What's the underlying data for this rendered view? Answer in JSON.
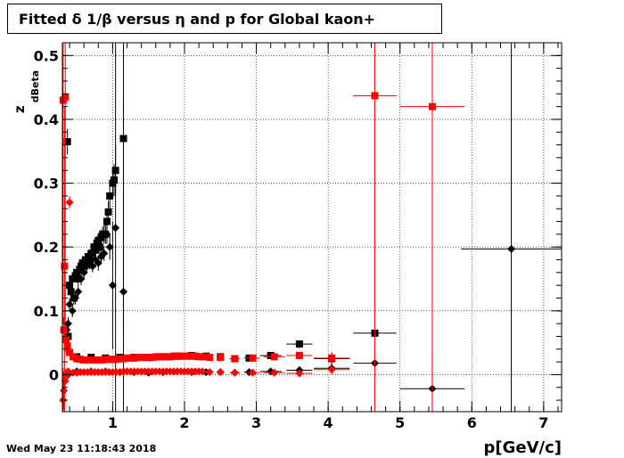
{
  "title": "Fitted δ 1/β versus η and p for Global kaon+",
  "timestamp": "Wed May 23 11:18:43 2018",
  "chart_data": {
    "type": "scatter",
    "xlabel": "p[GeV/c]",
    "ylabel": "z_dBeta",
    "ylabel_main": "z",
    "ylabel_sub": "dBeta",
    "xlim": [
      0.3,
      7.25
    ],
    "ylim": [
      -0.058,
      0.52
    ],
    "xticks": [
      1,
      2,
      3,
      4,
      5,
      6,
      7
    ],
    "yticks": [
      0,
      0.1,
      0.2,
      0.3,
      0.4,
      0.5
    ],
    "ytick_labels": [
      "0",
      "0.1",
      "0.2",
      "0.3",
      "0.4",
      "0.5"
    ],
    "grid": true,
    "series": [
      {
        "color": "#000000",
        "marker": "square",
        "points": [
          [
            0.37,
            0.365,
            0.01,
            0.02
          ],
          [
            0.4,
            0.14,
            0.01,
            0.012
          ],
          [
            0.42,
            0.13,
            0.01,
            0.01
          ],
          [
            0.44,
            0.15,
            0.01,
            0.01
          ],
          [
            0.46,
            0.12,
            0.01,
            0.01
          ],
          [
            0.48,
            0.155,
            0.01,
            0.01
          ],
          [
            0.5,
            0.16,
            0.01,
            0.01
          ],
          [
            0.52,
            0.15,
            0.01,
            0.01
          ],
          [
            0.54,
            0.165,
            0.01,
            0.01
          ],
          [
            0.56,
            0.17,
            0.01,
            0.01
          ],
          [
            0.58,
            0.175,
            0.01,
            0.01
          ],
          [
            0.6,
            0.17,
            0.01,
            0.01
          ],
          [
            0.62,
            0.18,
            0.01,
            0.01
          ],
          [
            0.64,
            0.175,
            0.01,
            0.01
          ],
          [
            0.66,
            0.185,
            0.01,
            0.01
          ],
          [
            0.68,
            0.18,
            0.01,
            0.01
          ],
          [
            0.7,
            0.19,
            0.01,
            0.01
          ],
          [
            0.72,
            0.19,
            0.01,
            0.01
          ],
          [
            0.74,
            0.2,
            0.01,
            0.012
          ],
          [
            0.76,
            0.195,
            0.01,
            0.012
          ],
          [
            0.78,
            0.205,
            0.01,
            0.012
          ],
          [
            0.8,
            0.21,
            0.01,
            0.012
          ],
          [
            0.82,
            0.2,
            0.01,
            0.012
          ],
          [
            0.84,
            0.215,
            0.01,
            0.012
          ],
          [
            0.86,
            0.22,
            0.01,
            0.012
          ],
          [
            0.88,
            0.22,
            0.01,
            0.015
          ],
          [
            0.9,
            0.22,
            0.01,
            0.015
          ],
          [
            0.92,
            0.24,
            0.01,
            0.015
          ],
          [
            0.94,
            0.255,
            0.01,
            0.018
          ],
          [
            0.96,
            0.28,
            0.01,
            0.02
          ],
          [
            1.0,
            0.3,
            0.01,
            0.025
          ],
          [
            1.02,
            0.305,
            0.01,
            0.025
          ],
          [
            1.04,
            0.32,
            0.01,
            0.04
          ],
          [
            1.15,
            0.37,
            0.01,
            0.3
          ],
          [
            0.38,
            0.06,
            0.02,
            0.005
          ],
          [
            0.5,
            0.028,
            0.02,
            0.004
          ],
          [
            0.7,
            0.027,
            0.02,
            0.003
          ],
          [
            0.9,
            0.026,
            0.02,
            0.003
          ],
          [
            1.1,
            0.027,
            0.05,
            0.003
          ],
          [
            1.3,
            0.027,
            0.05,
            0.003
          ],
          [
            1.5,
            0.027,
            0.05,
            0.003
          ],
          [
            1.7,
            0.028,
            0.05,
            0.003
          ],
          [
            1.9,
            0.029,
            0.05,
            0.003
          ],
          [
            2.1,
            0.03,
            0.05,
            0.003
          ],
          [
            2.3,
            0.029,
            0.05,
            0.003
          ],
          [
            2.5,
            0.028,
            0.05,
            0.003
          ],
          [
            2.7,
            0.025,
            0.07,
            0.003
          ],
          [
            2.9,
            0.026,
            0.07,
            0.003
          ],
          [
            3.2,
            0.03,
            0.15,
            0.004
          ],
          [
            3.6,
            0.048,
            0.18,
            0.006
          ],
          [
            4.05,
            0.025,
            0.25,
            0.01
          ],
          [
            4.65,
            0.065,
            0.3,
            0.015
          ]
        ]
      },
      {
        "color": "#000000",
        "marker": "diamond",
        "points": [
          [
            0.36,
            0.07,
            0.01,
            0.01
          ],
          [
            0.38,
            0.08,
            0.01,
            0.01
          ],
          [
            0.4,
            0.11,
            0.01,
            0.01
          ],
          [
            0.44,
            0.1,
            0.01,
            0.01
          ],
          [
            0.48,
            0.12,
            0.01,
            0.01
          ],
          [
            0.52,
            0.13,
            0.01,
            0.01
          ],
          [
            0.56,
            0.15,
            0.01,
            0.01
          ],
          [
            0.6,
            0.16,
            0.01,
            0.01
          ],
          [
            0.64,
            0.17,
            0.01,
            0.01
          ],
          [
            0.68,
            0.175,
            0.01,
            0.01
          ],
          [
            0.72,
            0.17,
            0.01,
            0.01
          ],
          [
            0.76,
            0.18,
            0.01,
            0.012
          ],
          [
            0.8,
            0.175,
            0.01,
            0.012
          ],
          [
            0.84,
            0.185,
            0.01,
            0.012
          ],
          [
            0.88,
            0.19,
            0.01,
            0.012
          ],
          [
            0.92,
            0.22,
            0.01,
            0.015
          ],
          [
            0.96,
            0.2,
            0.01,
            0.02
          ],
          [
            1.0,
            0.14,
            0.01,
            0.1
          ],
          [
            1.04,
            0.23,
            0.01,
            0.3
          ],
          [
            1.15,
            0.13,
            0.01,
            0.3
          ],
          [
            0.38,
            0.0,
            0.02,
            0.004
          ],
          [
            0.5,
            0.005,
            0.02,
            0.003
          ],
          [
            0.7,
            0.005,
            0.02,
            0.003
          ],
          [
            0.9,
            0.005,
            0.02,
            0.003
          ],
          [
            1.1,
            0.004,
            0.05,
            0.003
          ],
          [
            1.3,
            0.004,
            0.05,
            0.003
          ],
          [
            1.5,
            0.003,
            0.05,
            0.003
          ],
          [
            1.7,
            0.004,
            0.05,
            0.003
          ],
          [
            1.9,
            0.005,
            0.05,
            0.003
          ],
          [
            2.1,
            0.004,
            0.05,
            0.003
          ],
          [
            2.3,
            0.004,
            0.05,
            0.003
          ],
          [
            2.5,
            0.004,
            0.05,
            0.003
          ],
          [
            2.7,
            0.003,
            0.07,
            0.003
          ],
          [
            2.9,
            0.004,
            0.07,
            0.003
          ],
          [
            3.2,
            0.005,
            0.15,
            0.004
          ],
          [
            3.6,
            0.007,
            0.18,
            0.006
          ],
          [
            4.05,
            0.01,
            0.25,
            0.008
          ],
          [
            4.65,
            0.018,
            0.3,
            0.012
          ],
          [
            5.45,
            -0.022,
            0.45,
            0.06
          ],
          [
            6.55,
            0.197,
            0.7,
            0.33
          ]
        ]
      },
      {
        "color": "#ff0000",
        "marker": "square",
        "points": [
          [
            0.31,
            0.43,
            0.01,
            0.35
          ],
          [
            0.34,
            0.435,
            0.01,
            0.4
          ],
          [
            0.33,
            0.17,
            0.01,
            0.25
          ],
          [
            0.32,
            0.07,
            0.01,
            0.02
          ],
          [
            0.35,
            0.055,
            0.01,
            0.01
          ],
          [
            0.37,
            0.045,
            0.01,
            0.01
          ],
          [
            0.4,
            0.035,
            0.01,
            0.005
          ],
          [
            0.45,
            0.028,
            0.02,
            0.003
          ],
          [
            0.5,
            0.025,
            0.02,
            0.003
          ],
          [
            0.55,
            0.024,
            0.02,
            0.003
          ],
          [
            0.6,
            0.023,
            0.02,
            0.003
          ],
          [
            0.65,
            0.023,
            0.02,
            0.003
          ],
          [
            0.7,
            0.023,
            0.02,
            0.003
          ],
          [
            0.75,
            0.023,
            0.02,
            0.003
          ],
          [
            0.8,
            0.023,
            0.02,
            0.003
          ],
          [
            0.85,
            0.023,
            0.02,
            0.003
          ],
          [
            0.9,
            0.024,
            0.02,
            0.003
          ],
          [
            0.95,
            0.024,
            0.02,
            0.003
          ],
          [
            1.0,
            0.024,
            0.02,
            0.003
          ],
          [
            1.05,
            0.024,
            0.02,
            0.003
          ],
          [
            1.1,
            0.025,
            0.02,
            0.003
          ],
          [
            1.15,
            0.025,
            0.02,
            0.003
          ],
          [
            1.2,
            0.026,
            0.02,
            0.003
          ],
          [
            1.25,
            0.026,
            0.02,
            0.003
          ],
          [
            1.3,
            0.026,
            0.02,
            0.003
          ],
          [
            1.35,
            0.027,
            0.02,
            0.003
          ],
          [
            1.4,
            0.027,
            0.02,
            0.003
          ],
          [
            1.45,
            0.027,
            0.02,
            0.003
          ],
          [
            1.5,
            0.027,
            0.02,
            0.003
          ],
          [
            1.55,
            0.027,
            0.02,
            0.003
          ],
          [
            1.6,
            0.028,
            0.02,
            0.003
          ],
          [
            1.65,
            0.028,
            0.02,
            0.003
          ],
          [
            1.7,
            0.028,
            0.02,
            0.003
          ],
          [
            1.75,
            0.028,
            0.02,
            0.003
          ],
          [
            1.8,
            0.028,
            0.02,
            0.003
          ],
          [
            1.85,
            0.029,
            0.02,
            0.003
          ],
          [
            1.9,
            0.029,
            0.02,
            0.003
          ],
          [
            1.95,
            0.029,
            0.02,
            0.003
          ],
          [
            2.0,
            0.029,
            0.02,
            0.003
          ],
          [
            2.05,
            0.029,
            0.02,
            0.003
          ],
          [
            2.1,
            0.029,
            0.02,
            0.003
          ],
          [
            2.15,
            0.029,
            0.02,
            0.003
          ],
          [
            2.2,
            0.028,
            0.02,
            0.003
          ],
          [
            2.25,
            0.028,
            0.02,
            0.003
          ],
          [
            2.35,
            0.027,
            0.05,
            0.003
          ],
          [
            2.5,
            0.027,
            0.05,
            0.003
          ],
          [
            2.7,
            0.025,
            0.07,
            0.003
          ],
          [
            2.95,
            0.026,
            0.1,
            0.003
          ],
          [
            3.25,
            0.028,
            0.15,
            0.004
          ],
          [
            3.6,
            0.03,
            0.18,
            0.006
          ],
          [
            4.05,
            0.026,
            0.25,
            0.008
          ],
          [
            4.65,
            0.437,
            0.3,
            0.5
          ],
          [
            5.45,
            0.42,
            0.45,
            0.5
          ]
        ]
      },
      {
        "color": "#ff0000",
        "marker": "diamond",
        "points": [
          [
            0.31,
            -0.04,
            0.01,
            0.05
          ],
          [
            0.32,
            -0.025,
            0.01,
            0.03
          ],
          [
            0.34,
            -0.01,
            0.01,
            0.02
          ],
          [
            0.37,
            0.0,
            0.01,
            0.01
          ],
          [
            0.4,
            0.27,
            0.01,
            0.01
          ],
          [
            0.38,
            0.005,
            0.01,
            0.005
          ],
          [
            0.45,
            0.003,
            0.02,
            0.003
          ],
          [
            0.5,
            0.003,
            0.02,
            0.003
          ],
          [
            0.55,
            0.004,
            0.02,
            0.003
          ],
          [
            0.6,
            0.004,
            0.02,
            0.003
          ],
          [
            0.65,
            0.004,
            0.02,
            0.003
          ],
          [
            0.7,
            0.004,
            0.02,
            0.003
          ],
          [
            0.75,
            0.004,
            0.02,
            0.003
          ],
          [
            0.8,
            0.004,
            0.02,
            0.003
          ],
          [
            0.85,
            0.004,
            0.02,
            0.003
          ],
          [
            0.9,
            0.004,
            0.02,
            0.003
          ],
          [
            0.95,
            0.004,
            0.02,
            0.003
          ],
          [
            1.0,
            0.004,
            0.02,
            0.003
          ],
          [
            1.05,
            0.004,
            0.02,
            0.003
          ],
          [
            1.1,
            0.004,
            0.02,
            0.003
          ],
          [
            1.15,
            0.005,
            0.02,
            0.003
          ],
          [
            1.2,
            0.005,
            0.02,
            0.003
          ],
          [
            1.25,
            0.005,
            0.02,
            0.003
          ],
          [
            1.3,
            0.005,
            0.02,
            0.003
          ],
          [
            1.35,
            0.005,
            0.02,
            0.003
          ],
          [
            1.4,
            0.005,
            0.02,
            0.003
          ],
          [
            1.45,
            0.005,
            0.02,
            0.003
          ],
          [
            1.5,
            0.005,
            0.02,
            0.003
          ],
          [
            1.55,
            0.005,
            0.02,
            0.003
          ],
          [
            1.6,
            0.005,
            0.02,
            0.003
          ],
          [
            1.65,
            0.005,
            0.02,
            0.003
          ],
          [
            1.7,
            0.005,
            0.02,
            0.003
          ],
          [
            1.75,
            0.005,
            0.02,
            0.003
          ],
          [
            1.8,
            0.005,
            0.02,
            0.003
          ],
          [
            1.85,
            0.005,
            0.02,
            0.003
          ],
          [
            1.9,
            0.005,
            0.02,
            0.003
          ],
          [
            1.95,
            0.005,
            0.02,
            0.003
          ],
          [
            2.0,
            0.005,
            0.02,
            0.003
          ],
          [
            2.05,
            0.005,
            0.02,
            0.003
          ],
          [
            2.1,
            0.005,
            0.02,
            0.003
          ],
          [
            2.15,
            0.005,
            0.02,
            0.003
          ],
          [
            2.2,
            0.005,
            0.02,
            0.003
          ],
          [
            2.25,
            0.005,
            0.02,
            0.003
          ],
          [
            2.35,
            0.004,
            0.05,
            0.003
          ],
          [
            2.5,
            0.004,
            0.05,
            0.003
          ],
          [
            2.7,
            0.003,
            0.07,
            0.003
          ],
          [
            2.95,
            0.003,
            0.1,
            0.003
          ],
          [
            3.25,
            0.003,
            0.15,
            0.004
          ],
          [
            3.6,
            0.002,
            0.18,
            0.006
          ],
          [
            4.05,
            0.008,
            0.25,
            0.008
          ]
        ]
      }
    ]
  }
}
